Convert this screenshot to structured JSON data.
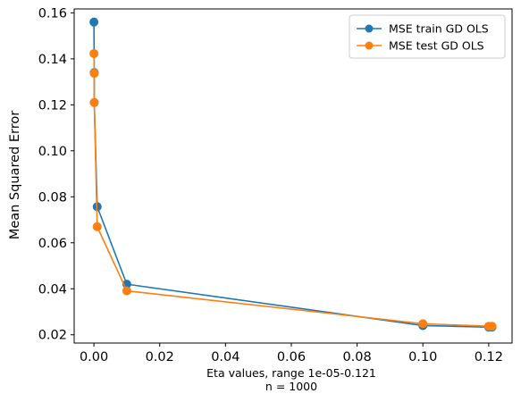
{
  "chart_data": {
    "type": "line",
    "xlabel_line1": "Eta values, range 1e-05-0.121",
    "xlabel_line2": "n = 1000",
    "ylabel": "Mean Squared Error",
    "xlim": [
      -0.006,
      0.1271
    ],
    "ylim": [
      0.0164,
      0.1617
    ],
    "xticks": [
      0.0,
      0.02,
      0.04,
      0.06,
      0.08,
      0.1,
      0.12
    ],
    "xtick_labels": [
      "0.00",
      "0.02",
      "0.04",
      "0.06",
      "0.08",
      "0.10",
      "0.12"
    ],
    "yticks": [
      0.02,
      0.04,
      0.06,
      0.08,
      0.1,
      0.12,
      0.14,
      0.16
    ],
    "ytick_labels": [
      "0.02",
      "0.04",
      "0.06",
      "0.08",
      "0.10",
      "0.12",
      "0.14",
      "0.16"
    ],
    "grid": false,
    "legend_position": "top-right",
    "x": [
      1e-05,
      0.0001,
      0.00011,
      0.001,
      0.01,
      0.1,
      0.12,
      0.121
    ],
    "series": [
      {
        "name": "MSE train GD OLS",
        "color": "#1f77b4",
        "values": [
          0.156,
          0.134,
          0.121,
          0.0757,
          0.042,
          0.024,
          0.0233,
          0.0233
        ]
      },
      {
        "name": "MSE test GD OLS",
        "color": "#ff7f0e",
        "values": [
          0.1423,
          0.1337,
          0.121,
          0.067,
          0.0391,
          0.0248,
          0.0237,
          0.0237
        ]
      }
    ]
  }
}
